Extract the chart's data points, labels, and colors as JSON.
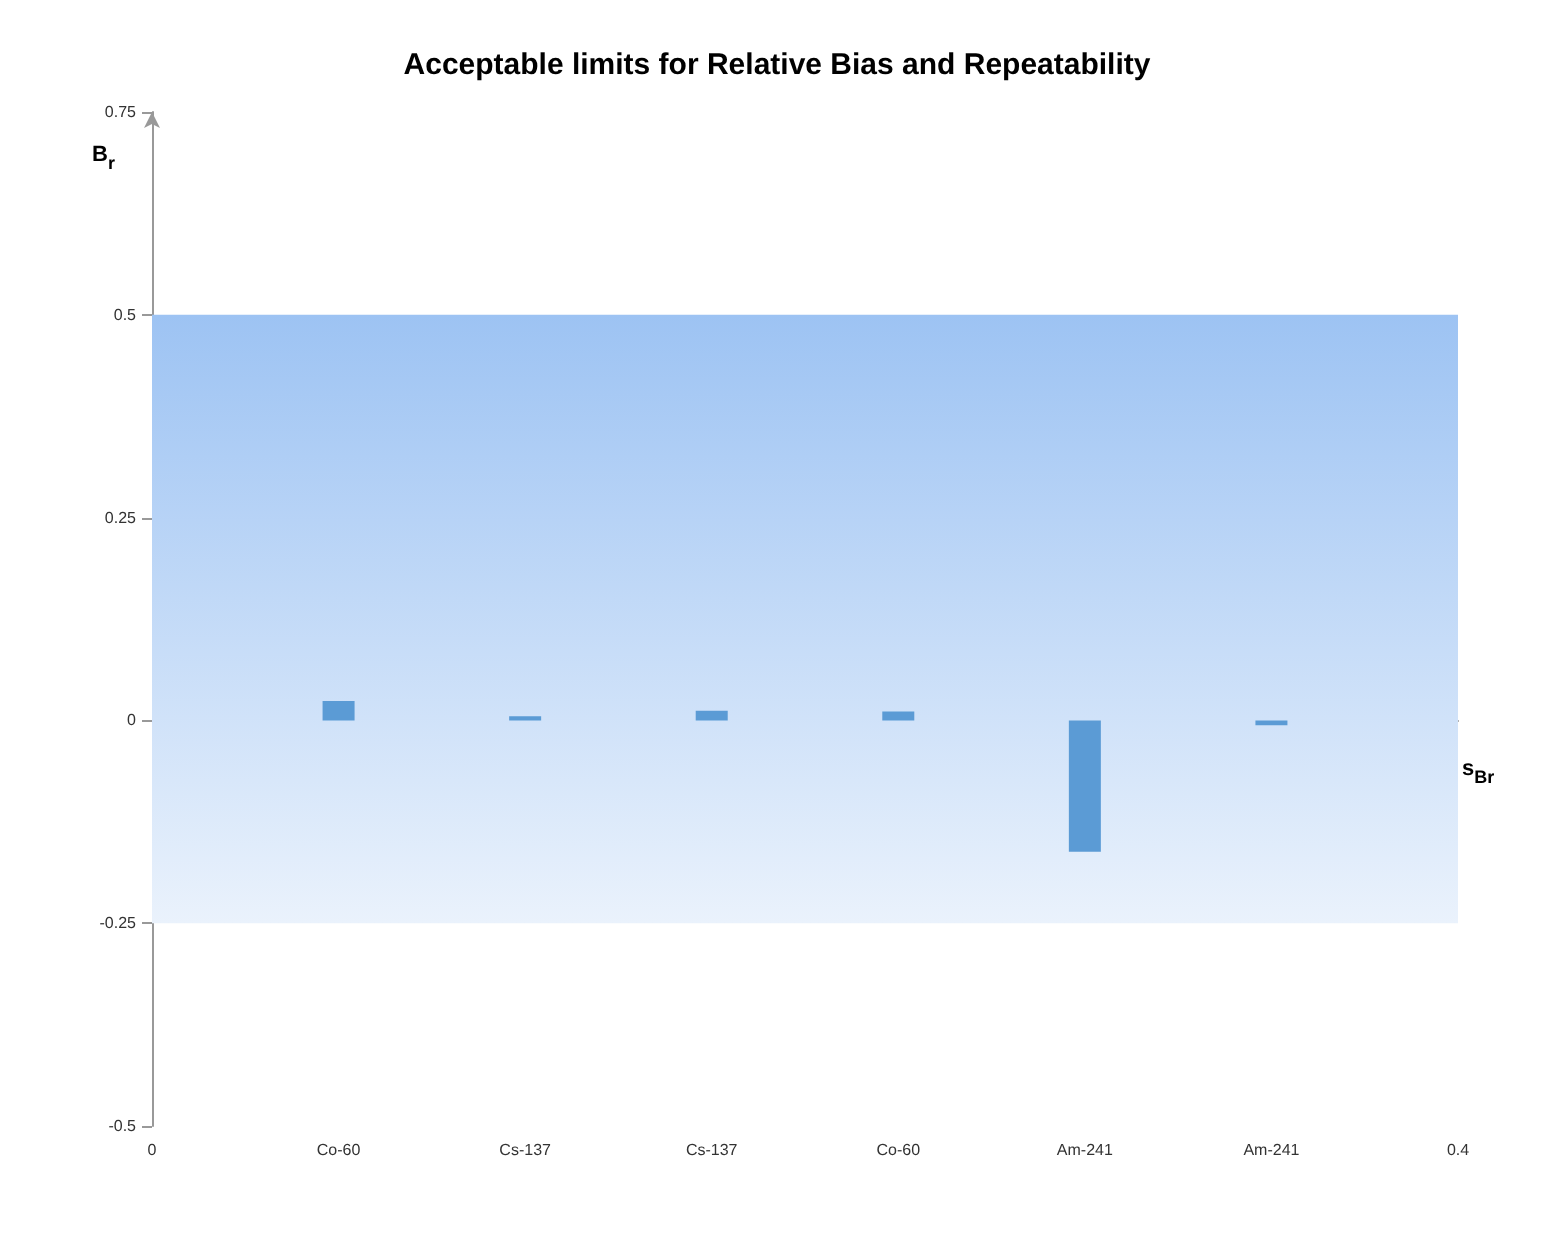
{
  "chart_data": {
    "type": "bar",
    "title": "Acceptable limits for Relative Bias and Repeatability",
    "xlabel": "s$_{Br}$",
    "ylabel": "B$_{r}$",
    "categories": [
      "0",
      "Co-60",
      "Cs-137",
      "Cs-137",
      "Co-60",
      "Am-241",
      "Am-241",
      "0.4"
    ],
    "values": [
      null,
      0.024,
      0.005,
      0.012,
      0.011,
      -0.162,
      -0.006,
      null
    ],
    "color": "#5b9bd5",
    "ylim": [
      -0.5,
      0.75
    ],
    "yticks": [
      -0.5,
      -0.25,
      0,
      0.25,
      0.5,
      0.75
    ],
    "bands": [
      {
        "axis": "y",
        "from": -0.25,
        "to": 0.5,
        "color": "#9dc3f3"
      }
    ]
  }
}
